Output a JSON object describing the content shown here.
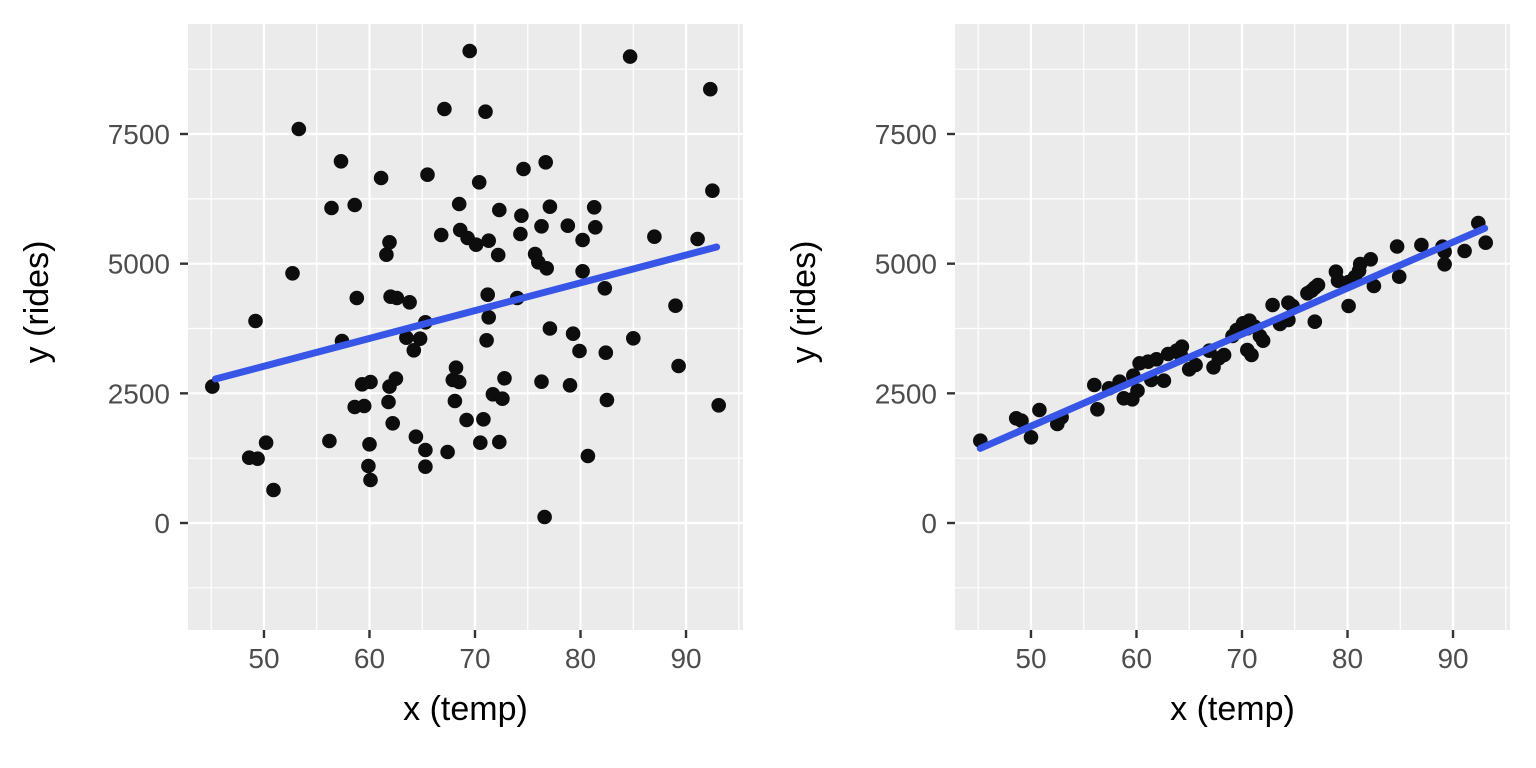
{
  "figure": {
    "description": "two ggplot-style scatter plots with linear trend lines"
  },
  "style": {
    "page_bg": "#ffffff",
    "panel_bg": "#ebebeb",
    "grid_color": "#ffffff",
    "point_color": "#0d0d0d",
    "trend_color": "#3755e6",
    "tick_color": "#333333",
    "tick_label_color": "#4d4d4d",
    "axis_title_color": "#000000"
  },
  "chart_data": [
    {
      "type": "scatter",
      "title": "",
      "xlabel": "x (temp)",
      "ylabel": "y (rides)",
      "x_ticks": [
        50,
        60,
        70,
        80,
        90
      ],
      "x_minor": [
        45,
        55,
        65,
        75,
        85,
        95
      ],
      "y_ticks": [
        0,
        2500,
        5000,
        7500
      ],
      "y_minor": [
        -1250,
        1250,
        3750,
        6250,
        8750
      ],
      "xlim": [
        42.8,
        95.4
      ],
      "ylim": [
        -2063,
        9621
      ],
      "grid": true,
      "legend": "none",
      "trend_line": {
        "x1": 45.4,
        "y1": 2776,
        "x2": 92.9,
        "y2": 5322
      },
      "points": [
        [
          69.5,
          9101
        ],
        [
          84.7,
          8992
        ],
        [
          92.3,
          8363
        ],
        [
          67.1,
          7982
        ],
        [
          71.0,
          7930
        ],
        [
          53.3,
          7596
        ],
        [
          57.3,
          6973
        ],
        [
          76.7,
          6954
        ],
        [
          74.6,
          6825
        ],
        [
          61.1,
          6652
        ],
        [
          65.5,
          6715
        ],
        [
          70.4,
          6569
        ],
        [
          92.5,
          6407
        ],
        [
          56.4,
          6073
        ],
        [
          58.6,
          6131
        ],
        [
          68.5,
          6150
        ],
        [
          72.3,
          6035
        ],
        [
          77.1,
          6098
        ],
        [
          74.4,
          5925
        ],
        [
          81.3,
          6087
        ],
        [
          76.3,
          5720
        ],
        [
          78.8,
          5732
        ],
        [
          74.3,
          5572
        ],
        [
          81.4,
          5701
        ],
        [
          80.2,
          5456
        ],
        [
          69.3,
          5495
        ],
        [
          70.1,
          5366
        ],
        [
          71.3,
          5443
        ],
        [
          66.8,
          5553
        ],
        [
          68.6,
          5649
        ],
        [
          61.9,
          5412
        ],
        [
          61.6,
          5173
        ],
        [
          72.2,
          5167
        ],
        [
          75.7,
          5187
        ],
        [
          76.0,
          5026
        ],
        [
          76.8,
          4911
        ],
        [
          80.2,
          4853
        ],
        [
          87.0,
          5520
        ],
        [
          91.1,
          5476
        ],
        [
          82.3,
          4525
        ],
        [
          52.7,
          4814
        ],
        [
          71.2,
          4402
        ],
        [
          58.8,
          4338
        ],
        [
          62.0,
          4364
        ],
        [
          62.6,
          4338
        ],
        [
          63.8,
          4255
        ],
        [
          89.0,
          4190
        ],
        [
          49.2,
          3895
        ],
        [
          65.3,
          3870
        ],
        [
          71.3,
          3966
        ],
        [
          74.0,
          4338
        ],
        [
          45.1,
          2629
        ],
        [
          57.4,
          3509
        ],
        [
          63.5,
          3573
        ],
        [
          64.8,
          3554
        ],
        [
          64.2,
          3330
        ],
        [
          59.3,
          2674
        ],
        [
          60.1,
          2719
        ],
        [
          61.9,
          2629
        ],
        [
          62.5,
          2783
        ],
        [
          61.8,
          2333
        ],
        [
          58.6,
          2237
        ],
        [
          59.5,
          2256
        ],
        [
          62.2,
          1922
        ],
        [
          56.2,
          1581
        ],
        [
          60.0,
          1517
        ],
        [
          50.2,
          1548
        ],
        [
          48.6,
          1259
        ],
        [
          49.4,
          1240
        ],
        [
          59.9,
          1099
        ],
        [
          60.1,
          829
        ],
        [
          50.9,
          636
        ],
        [
          64.4,
          1664
        ],
        [
          65.3,
          1408
        ],
        [
          67.4,
          1369
        ],
        [
          65.3,
          1086
        ],
        [
          68.2,
          2995
        ],
        [
          67.9,
          2757
        ],
        [
          68.5,
          2719
        ],
        [
          68.1,
          2352
        ],
        [
          71.1,
          3523
        ],
        [
          77.1,
          3750
        ],
        [
          79.3,
          3650
        ],
        [
          79.9,
          3316
        ],
        [
          82.4,
          3284
        ],
        [
          85.0,
          3561
        ],
        [
          89.3,
          3027
        ],
        [
          72.8,
          2790
        ],
        [
          76.3,
          2725
        ],
        [
          79.0,
          2655
        ],
        [
          71.7,
          2481
        ],
        [
          72.6,
          2397
        ],
        [
          82.5,
          2372
        ],
        [
          93.1,
          2270
        ],
        [
          69.2,
          1986
        ],
        [
          70.8,
          2000
        ],
        [
          70.5,
          1549
        ],
        [
          72.3,
          1562
        ],
        [
          80.7,
          1292
        ],
        [
          76.6,
          116
        ]
      ]
    },
    {
      "type": "scatter",
      "title": "",
      "xlabel": "x (temp)",
      "ylabel": "y (rides)",
      "x_ticks": [
        50,
        60,
        70,
        80,
        90
      ],
      "x_minor": [
        45,
        55,
        65,
        75,
        85,
        95
      ],
      "y_ticks": [
        0,
        2500,
        5000,
        7500
      ],
      "y_minor": [
        -1250,
        1250,
        3750,
        6250,
        8750
      ],
      "xlim": [
        42.8,
        95.4
      ],
      "ylim": [
        -2063,
        9621
      ],
      "grid": true,
      "legend": "none",
      "trend_line": {
        "x1": 45.2,
        "y1": 1440,
        "x2": 93.0,
        "y2": 5682
      },
      "points": [
        [
          45.2,
          1587
        ],
        [
          48.6,
          2019
        ],
        [
          49.1,
          1972
        ],
        [
          50.0,
          1652
        ],
        [
          50.8,
          2179
        ],
        [
          52.5,
          1909
        ],
        [
          52.9,
          2038
        ],
        [
          56.0,
          2661
        ],
        [
          56.3,
          2192
        ],
        [
          57.4,
          2597
        ],
        [
          58.4,
          2724
        ],
        [
          58.8,
          2404
        ],
        [
          59.6,
          2385
        ],
        [
          59.7,
          2840
        ],
        [
          60.3,
          3079
        ],
        [
          60.1,
          2551
        ],
        [
          61.1,
          3110
        ],
        [
          61.4,
          2757
        ],
        [
          61.9,
          3156
        ],
        [
          62.6,
          2744
        ],
        [
          63.0,
          3258
        ],
        [
          63.8,
          3322
        ],
        [
          64.3,
          3399
        ],
        [
          64.2,
          3239
        ],
        [
          65.0,
          2963
        ],
        [
          65.6,
          3046
        ],
        [
          66.9,
          3322
        ],
        [
          67.8,
          3175
        ],
        [
          67.3,
          3002
        ],
        [
          68.3,
          3239
        ],
        [
          69.1,
          3605
        ],
        [
          69.5,
          3721
        ],
        [
          70.1,
          3850
        ],
        [
          70.7,
          3900
        ],
        [
          70.5,
          3754
        ],
        [
          71.2,
          3785
        ],
        [
          71.7,
          3605
        ],
        [
          72.0,
          3515
        ],
        [
          70.5,
          3336
        ],
        [
          70.9,
          3239
        ],
        [
          72.9,
          4203
        ],
        [
          73.6,
          3837
        ],
        [
          74.4,
          4248
        ],
        [
          74.8,
          4184
        ],
        [
          74.4,
          3914
        ],
        [
          76.9,
          3881
        ],
        [
          76.2,
          4429
        ],
        [
          76.6,
          4479
        ],
        [
          76.9,
          4537
        ],
        [
          77.2,
          4589
        ],
        [
          78.9,
          4845
        ],
        [
          79.1,
          4672
        ],
        [
          80.1,
          4184
        ],
        [
          80.1,
          4647
        ],
        [
          80.7,
          4743
        ],
        [
          81.2,
          4994
        ],
        [
          81.1,
          4865
        ],
        [
          82.2,
          5084
        ],
        [
          82.5,
          4570
        ],
        [
          84.7,
          5331
        ],
        [
          84.9,
          4749
        ],
        [
          87.0,
          5360
        ],
        [
          89.0,
          5328
        ],
        [
          89.2,
          5231
        ],
        [
          89.2,
          4988
        ],
        [
          91.1,
          5245
        ],
        [
          92.4,
          5785
        ],
        [
          93.1,
          5405
        ]
      ]
    }
  ]
}
